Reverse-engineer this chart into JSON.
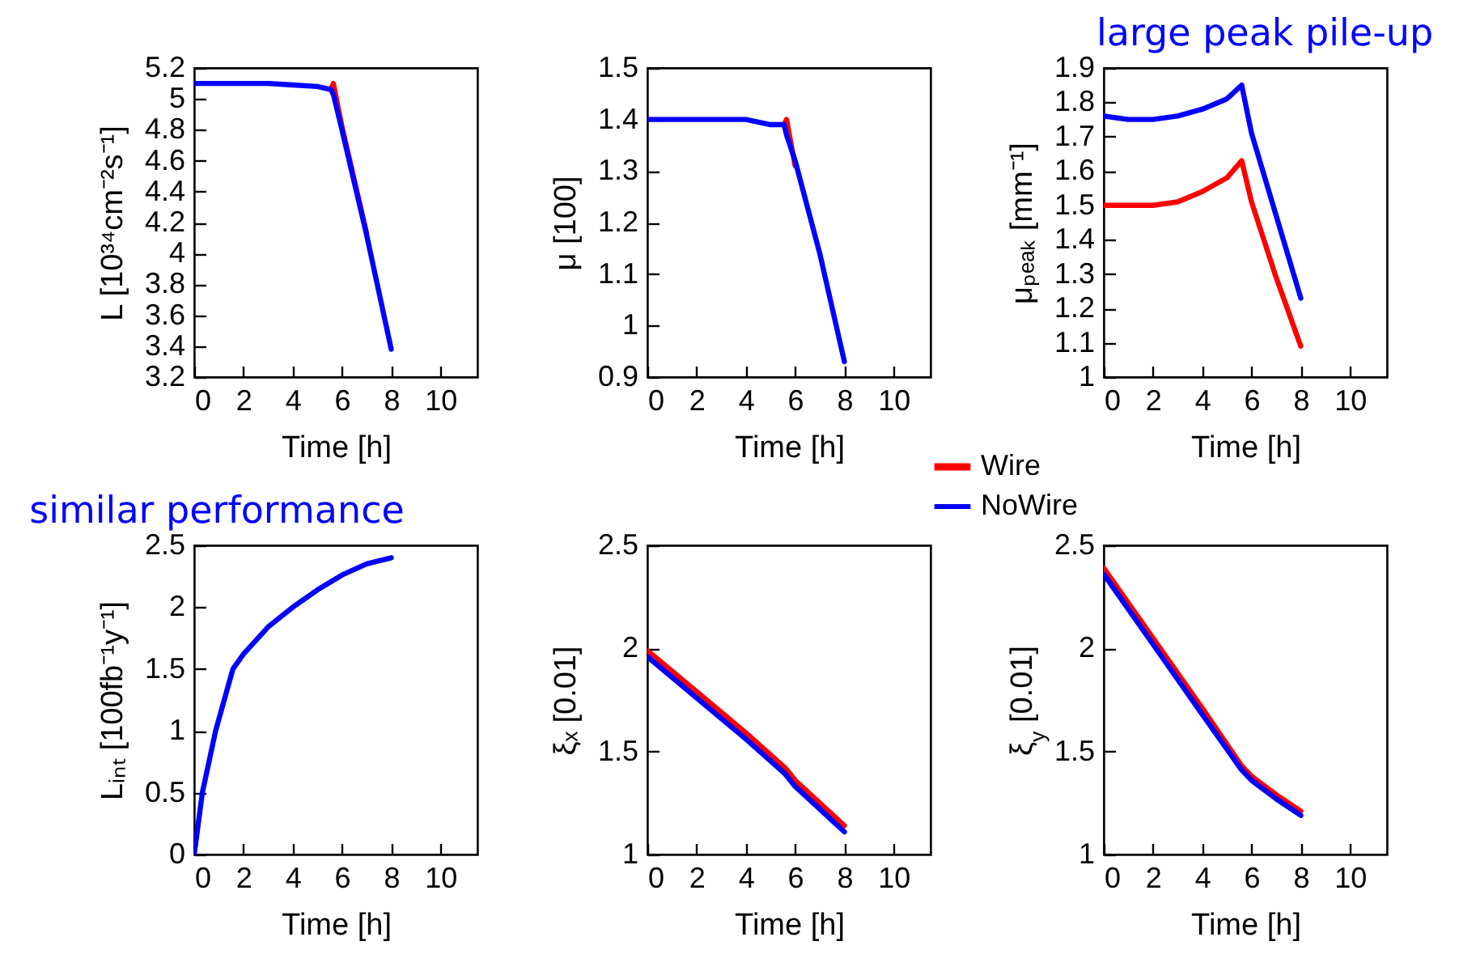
{
  "chart_data": [
    {
      "type": "line",
      "xlabel": "Time [h]",
      "ylabel": "L [10³⁴cm⁻²s⁻¹]",
      "xlim": [
        0,
        11.5
      ],
      "xticks": [
        0,
        2,
        4,
        6,
        8,
        10
      ],
      "ylim": [
        3.2,
        5.2
      ],
      "yticks": [
        3.2,
        3.4,
        3.6,
        3.8,
        4,
        4.2,
        4.4,
        4.6,
        4.8,
        5,
        5.2
      ],
      "x": [
        0,
        1,
        2,
        3,
        4,
        5,
        5.55,
        5.65,
        6,
        7,
        8
      ],
      "series": [
        {
          "color": "#ff0000",
          "values": [
            null,
            null,
            null,
            null,
            null,
            null,
            5.06,
            5.1,
            4.82,
            4.13,
            null
          ]
        },
        {
          "color": "#0000ff",
          "values": [
            5.1,
            5.1,
            5.1,
            5.1,
            5.09,
            5.08,
            5.06,
            5.03,
            4.8,
            4.12,
            3.38
          ]
        }
      ]
    },
    {
      "type": "line",
      "xlabel": "Time [h]",
      "ylabel": "μ [100]",
      "xlim": [
        0,
        11.5
      ],
      "xticks": [
        0,
        2,
        4,
        6,
        8,
        10
      ],
      "ylim": [
        0.9,
        1.5
      ],
      "yticks": [
        0.9,
        1,
        1.1,
        1.2,
        1.3,
        1.4,
        1.5
      ],
      "legend": "bottom right",
      "x": [
        0,
        1,
        2,
        3,
        4,
        5,
        5.55,
        5.65,
        6,
        7,
        8
      ],
      "series": [
        {
          "name": "Wire",
          "color": "#ff0000",
          "values": [
            null,
            null,
            null,
            null,
            null,
            null,
            1.39,
            1.4,
            1.31,
            null,
            null
          ]
        },
        {
          "name": "NoWire",
          "color": "#0000ff",
          "values": [
            1.4,
            1.4,
            1.4,
            1.4,
            1.4,
            1.39,
            1.39,
            1.37,
            1.32,
            1.14,
            0.93
          ]
        }
      ]
    },
    {
      "type": "line",
      "xlabel": "Time [h]",
      "ylabel": "μₚₑₐₖ [mm⁻¹]",
      "xlim": [
        0,
        11.5
      ],
      "xticks": [
        0,
        2,
        4,
        6,
        8,
        10
      ],
      "ylim": [
        1,
        1.9
      ],
      "yticks": [
        1,
        1.1,
        1.2,
        1.3,
        1.4,
        1.5,
        1.6,
        1.7,
        1.8,
        1.9
      ],
      "annotations": [
        "large peak pile-up"
      ],
      "x": [
        0,
        1,
        2,
        3,
        4,
        5,
        5.6,
        6,
        7,
        8
      ],
      "series": [
        {
          "color": "#ff0000",
          "values": [
            1.5,
            1.5,
            1.5,
            1.51,
            1.54,
            1.58,
            1.63,
            1.51,
            1.29,
            1.09
          ]
        },
        {
          "color": "#0000ff",
          "values": [
            1.76,
            1.75,
            1.75,
            1.76,
            1.78,
            1.81,
            1.85,
            1.71,
            1.47,
            1.23
          ]
        }
      ]
    },
    {
      "type": "line",
      "xlabel": "Time [h]",
      "ylabel": "Lᵢₙₜ [100fb⁻¹y⁻¹]",
      "xlim": [
        0,
        11.5
      ],
      "xticks": [
        0,
        2,
        4,
        6,
        8,
        10
      ],
      "ylim": [
        0,
        2.5
      ],
      "yticks": [
        0,
        0.5,
        1,
        1.5,
        2,
        2.5
      ],
      "annotations": [
        "similar performance"
      ],
      "x": [
        0,
        0.33,
        0.87,
        1.57,
        2,
        3,
        4,
        5,
        6,
        7,
        8
      ],
      "series": [
        {
          "color": "#ff0000",
          "values": [
            null,
            null,
            null,
            null,
            null,
            null,
            null,
            null,
            null,
            null,
            null
          ]
        },
        {
          "color": "#0000ff",
          "values": [
            0,
            0.5,
            1,
            1.5,
            1.62,
            1.84,
            2,
            2.14,
            2.26,
            2.35,
            2.4
          ]
        }
      ]
    },
    {
      "type": "line",
      "xlabel": "Time [h]",
      "ylabel": "ξₓ [0.01]",
      "xlim": [
        0,
        11.5
      ],
      "xticks": [
        0,
        2,
        4,
        6,
        8,
        10
      ],
      "ylim": [
        1,
        2.5
      ],
      "yticks": [
        1,
        1.5,
        2,
        2.5
      ],
      "x": [
        0,
        2,
        4,
        5.6,
        6,
        7,
        8
      ],
      "series": [
        {
          "color": "#ff0000",
          "values": [
            1.99,
            1.79,
            1.59,
            1.42,
            1.36,
            1.25,
            1.14
          ]
        },
        {
          "color": "#0000ff",
          "values": [
            1.96,
            1.76,
            1.56,
            1.39,
            1.33,
            1.22,
            1.11
          ]
        }
      ]
    },
    {
      "type": "line",
      "xlabel": "Time [h]",
      "ylabel": "ξ$_{y}$ [0.01]",
      "xlim": [
        0,
        11.5
      ],
      "xticks": [
        0,
        2,
        4,
        6,
        8,
        10
      ],
      "ylim": [
        1,
        2.5
      ],
      "yticks": [
        1,
        1.5,
        2,
        2.5
      ],
      "x": [
        0,
        2,
        4,
        5.6,
        6,
        7,
        8
      ],
      "series": [
        {
          "color": "#ff0000",
          "values": [
            2.39,
            2.05,
            1.71,
            1.43,
            1.38,
            1.29,
            1.21
          ]
        },
        {
          "color": "#0000ff",
          "values": [
            2.36,
            2.02,
            1.68,
            1.41,
            1.36,
            1.27,
            1.19
          ]
        }
      ]
    }
  ]
}
